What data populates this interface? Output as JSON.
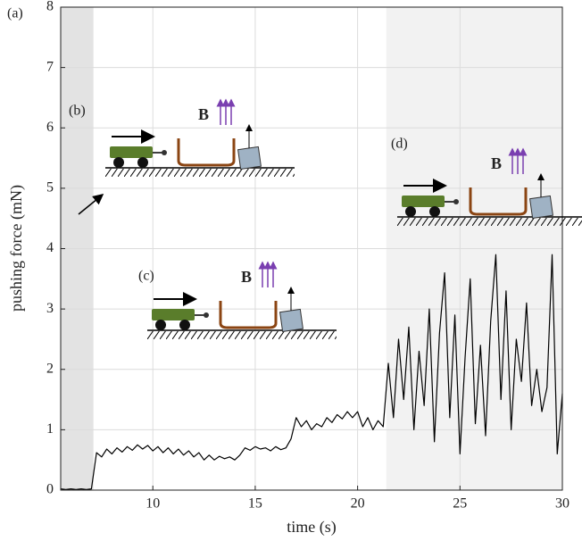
{
  "chart_data": {
    "type": "line",
    "panel_label": "(a)",
    "xlabel": "time (s)",
    "ylabel": "pushing force (mN)",
    "xlim": [
      5.5,
      30
    ],
    "ylim": [
      0,
      8
    ],
    "xticks": [
      10,
      15,
      20,
      25,
      30
    ],
    "yticks": [
      0,
      1,
      2,
      3,
      4,
      5,
      6,
      7,
      8
    ],
    "grid": true,
    "shaded_spans": [
      {
        "start": 5.5,
        "end": 7.1,
        "color": "#e3e3e3"
      },
      {
        "start": 21.4,
        "end": 30,
        "color": "#f2f2f2"
      }
    ],
    "series": [
      {
        "color": "#000000",
        "x": [
          5.5,
          5.75,
          6,
          6.25,
          6.5,
          6.75,
          7,
          7.25,
          7.5,
          7.75,
          8,
          8.25,
          8.5,
          8.75,
          9,
          9.25,
          9.5,
          9.75,
          10,
          10.25,
          10.5,
          10.75,
          11,
          11.25,
          11.5,
          11.75,
          12,
          12.25,
          12.5,
          12.75,
          13,
          13.25,
          13.5,
          13.75,
          14,
          14.25,
          14.5,
          14.75,
          15,
          15.25,
          15.5,
          15.75,
          16,
          16.25,
          16.5,
          16.75,
          17,
          17.25,
          17.5,
          17.75,
          18,
          18.25,
          18.5,
          18.75,
          19,
          19.25,
          19.5,
          19.75,
          20,
          20.25,
          20.5,
          20.75,
          21,
          21.25,
          21.5,
          21.75,
          22,
          22.25,
          22.5,
          22.75,
          23,
          23.25,
          23.5,
          23.75,
          24,
          24.25,
          24.5,
          24.75,
          25,
          25.25,
          25.5,
          25.75,
          26,
          26.25,
          26.5,
          26.75,
          27,
          27.25,
          27.5,
          27.75,
          28,
          28.25,
          28.5,
          28.75,
          29,
          29.25,
          29.5,
          29.75,
          30
        ],
        "values": [
          0.02,
          0.01,
          0.02,
          0.01,
          0.02,
          0.01,
          0.02,
          0.62,
          0.55,
          0.68,
          0.6,
          0.7,
          0.63,
          0.72,
          0.66,
          0.75,
          0.68,
          0.74,
          0.65,
          0.72,
          0.62,
          0.7,
          0.6,
          0.68,
          0.58,
          0.65,
          0.55,
          0.62,
          0.5,
          0.58,
          0.5,
          0.56,
          0.52,
          0.55,
          0.5,
          0.58,
          0.7,
          0.66,
          0.72,
          0.68,
          0.7,
          0.65,
          0.72,
          0.67,
          0.7,
          0.85,
          1.2,
          1.05,
          1.15,
          1.0,
          1.1,
          1.05,
          1.2,
          1.12,
          1.25,
          1.18,
          1.3,
          1.2,
          1.3,
          1.05,
          1.2,
          1.0,
          1.15,
          1.05,
          2.1,
          1.2,
          2.5,
          1.5,
          2.7,
          1.0,
          2.3,
          1.4,
          3.0,
          0.8,
          2.6,
          3.6,
          1.2,
          2.9,
          0.6,
          2.2,
          3.5,
          1.1,
          2.4,
          0.9,
          2.8,
          3.9,
          1.5,
          3.3,
          1.0,
          2.5,
          1.8,
          3.1,
          1.4,
          2.0,
          1.3,
          1.7,
          3.9,
          0.6,
          1.6
        ]
      }
    ],
    "insets": [
      {
        "label": "(b)",
        "field_label": "B"
      },
      {
        "label": "(c)",
        "field_label": "B"
      },
      {
        "label": "(d)",
        "field_label": "B"
      }
    ]
  }
}
